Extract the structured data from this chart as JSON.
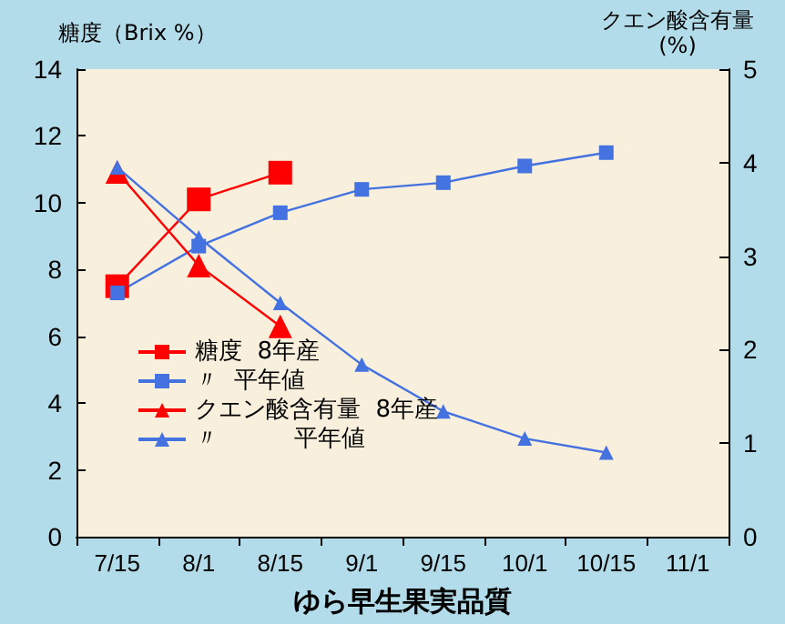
{
  "chart_data": {
    "type": "line",
    "xlabel": "ゆら早生果実品質",
    "ylabel": "糖度（Brix %）",
    "y2label": "クエン酸含有量\n(%)",
    "categories": [
      "7/15",
      "8/1",
      "8/15",
      "9/1",
      "9/15",
      "10/1",
      "10/15",
      "11/1"
    ],
    "ylim": [
      0,
      14
    ],
    "yticks": [
      0,
      2,
      4,
      6,
      8,
      10,
      12,
      14
    ],
    "y2lim": [
      0,
      5
    ],
    "y2ticks": [
      0,
      1,
      2,
      3,
      4,
      5
    ],
    "grid": false,
    "legend": "bottom left",
    "line_style": "solid",
    "series": [
      {
        "name": "糖度  8年産",
        "color": "#ff0000",
        "marker": "square",
        "values": [
          7.5,
          10.1,
          10.9,
          null,
          null,
          null,
          null,
          null
        ]
      },
      {
        "name": "〃  平年値",
        "color": "#4472e0",
        "marker": "square",
        "values": [
          7.3,
          8.7,
          9.7,
          10.4,
          10.6,
          11.1,
          11.5,
          null
        ]
      },
      {
        "name": "クエン酸含有量  8年産",
        "color": "#ff0000",
        "marker": "triangle",
        "axis": "y2",
        "values": [
          3.9,
          2.9,
          2.25,
          null,
          null,
          null,
          null,
          null
        ]
      },
      {
        "name": "〃          平年値",
        "color": "#4472e0",
        "marker": "triangle",
        "axis": "y2",
        "values": [
          3.95,
          3.2,
          2.5,
          1.84,
          1.34,
          1.05,
          0.9,
          null
        ]
      }
    ]
  }
}
